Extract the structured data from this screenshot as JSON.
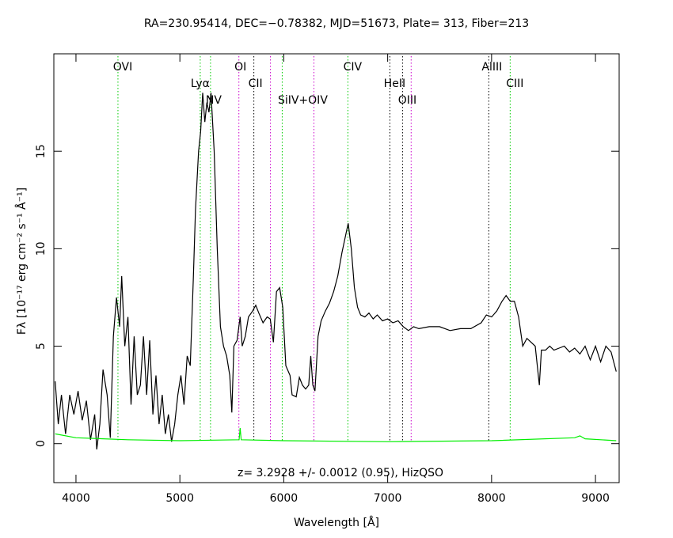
{
  "chart_data": {
    "type": "line",
    "title": "RA=230.95414, DEC=−0.78382, MJD=51673, Plate= 313, Fiber=213",
    "x_label": "Wavelength [Å]",
    "y_label": "Fλ [10⁻¹⁷ erg cm⁻² s⁻¹ Å⁻¹]",
    "annotation": "z= 3.2928 +/- 0.0012 (0.95), HizQSO",
    "xlim": [
      3787,
      9228
    ],
    "ylim": [
      -2,
      20
    ],
    "xticks": [
      4000,
      5000,
      6000,
      7000,
      8000,
      9000
    ],
    "yticks": [
      0,
      5,
      10,
      15
    ],
    "series": [
      {
        "color": "#000000",
        "x": [
          3800,
          3830,
          3860,
          3900,
          3940,
          3980,
          4020,
          4060,
          4100,
          4140,
          4180,
          4200,
          4230,
          4260,
          4300,
          4330,
          4360,
          4390,
          4420,
          4440,
          4470,
          4500,
          4530,
          4560,
          4590,
          4620,
          4650,
          4680,
          4710,
          4740,
          4770,
          4800,
          4830,
          4860,
          4890,
          4920,
          4950,
          4980,
          5010,
          5040,
          5070,
          5100,
          5130,
          5150,
          5180,
          5200,
          5220,
          5240,
          5260,
          5280,
          5300,
          5330,
          5360,
          5390,
          5420,
          5450,
          5480,
          5500,
          5520,
          5550,
          5580,
          5600,
          5630,
          5660,
          5700,
          5730,
          5760,
          5800,
          5840,
          5870,
          5900,
          5930,
          5960,
          5990,
          6020,
          6060,
          6080,
          6120,
          6150,
          6180,
          6210,
          6240,
          6260,
          6280,
          6300,
          6330,
          6360,
          6400,
          6440,
          6480,
          6520,
          6560,
          6600,
          6620,
          6650,
          6680,
          6710,
          6740,
          6780,
          6820,
          6860,
          6900,
          6950,
          7000,
          7050,
          7100,
          7150,
          7200,
          7250,
          7300,
          7400,
          7500,
          7600,
          7700,
          7800,
          7900,
          7950,
          8000,
          8050,
          8100,
          8140,
          8180,
          8220,
          8260,
          8300,
          8340,
          8380,
          8420,
          8460,
          8480,
          8520,
          8560,
          8600,
          8650,
          8700,
          8750,
          8800,
          8850,
          8900,
          8950,
          9000,
          9050,
          9100,
          9150,
          9200
        ],
        "values": [
          3.2,
          1,
          2.5,
          0.5,
          2.5,
          1.5,
          2.7,
          1.2,
          2.2,
          0.2,
          1.5,
          -0.3,
          1,
          3.8,
          2.5,
          0.3,
          5.5,
          7.5,
          6,
          8.6,
          5,
          6.5,
          2,
          5.5,
          2.5,
          3,
          5.5,
          2.5,
          5.3,
          1.5,
          3.5,
          1,
          2.5,
          0.5,
          1.5,
          0.1,
          1,
          2.5,
          3.5,
          2,
          4.5,
          4,
          8.5,
          12,
          15,
          16,
          18,
          16.5,
          17.5,
          17,
          18,
          15,
          10,
          6,
          5,
          4.5,
          3.5,
          1.6,
          5,
          5.3,
          6.5,
          5,
          5.5,
          6.5,
          6.8,
          7.1,
          6.7,
          6.2,
          6.5,
          6.4,
          5.2,
          7.8,
          8,
          7,
          4,
          3.5,
          2.5,
          2.4,
          3.4,
          3,
          2.8,
          3,
          4.5,
          3,
          2.7,
          5.5,
          6.3,
          6.8,
          7.2,
          7.8,
          8.6,
          9.8,
          10.8,
          11.3,
          10,
          8,
          7,
          6.6,
          6.5,
          6.7,
          6.4,
          6.6,
          6.3,
          6.4,
          6.2,
          6.3,
          6,
          5.8,
          6,
          5.9,
          6,
          6,
          5.8,
          5.9,
          5.9,
          6.2,
          6.6,
          6.5,
          6.8,
          7.3,
          7.6,
          7.3,
          7.3,
          6.5,
          5,
          5.4,
          5.2,
          5,
          3,
          4.8,
          4.8,
          5,
          4.8,
          4.9,
          5,
          4.7,
          4.9,
          4.6,
          5,
          4.3,
          5,
          4.2,
          5,
          4.7,
          3.7
        ]
      },
      {
        "color": "#00ee00",
        "x": [
          3800,
          4000,
          4500,
          5000,
          5570,
          5580,
          5590,
          6000,
          7000,
          8000,
          8800,
          8850,
          8900,
          9200
        ],
        "values": [
          0.5,
          0.3,
          0.2,
          0.15,
          0.2,
          0.8,
          0.2,
          0.15,
          0.1,
          0.15,
          0.3,
          0.4,
          0.25,
          0.15
        ]
      }
    ],
    "lines": [
      {
        "x": 4404,
        "label": "OVI",
        "color": "#00cc00"
      },
      {
        "x": 5196,
        "label": "Lyα",
        "color": "#00cc00"
      },
      {
        "x": 5295,
        "label": "NV",
        "color": "#00cc00"
      },
      {
        "x": 5568,
        "label": "OI",
        "color": "#cc00cc"
      },
      {
        "x": 5712,
        "label": "CII",
        "color": "#000000"
      },
      {
        "x": 5872,
        "label": null,
        "color": "#cc00cc"
      },
      {
        "x": 5985,
        "label": "SiIV+OIV",
        "color": "#00cc00"
      },
      {
        "x": 6290,
        "label": null,
        "color": "#cc00cc"
      },
      {
        "x": 6617,
        "label": "CIV",
        "color": "#00cc00"
      },
      {
        "x": 7021,
        "label": "HeII",
        "color": "#000000"
      },
      {
        "x": 7143,
        "label": "OIII",
        "color": "#000000"
      },
      {
        "x": 7226,
        "label": null,
        "color": "#cc00cc"
      },
      {
        "x": 7973,
        "label": "AlIII",
        "color": "#000000"
      },
      {
        "x": 8179,
        "label": "CIII",
        "color": "#00cc00"
      }
    ]
  }
}
